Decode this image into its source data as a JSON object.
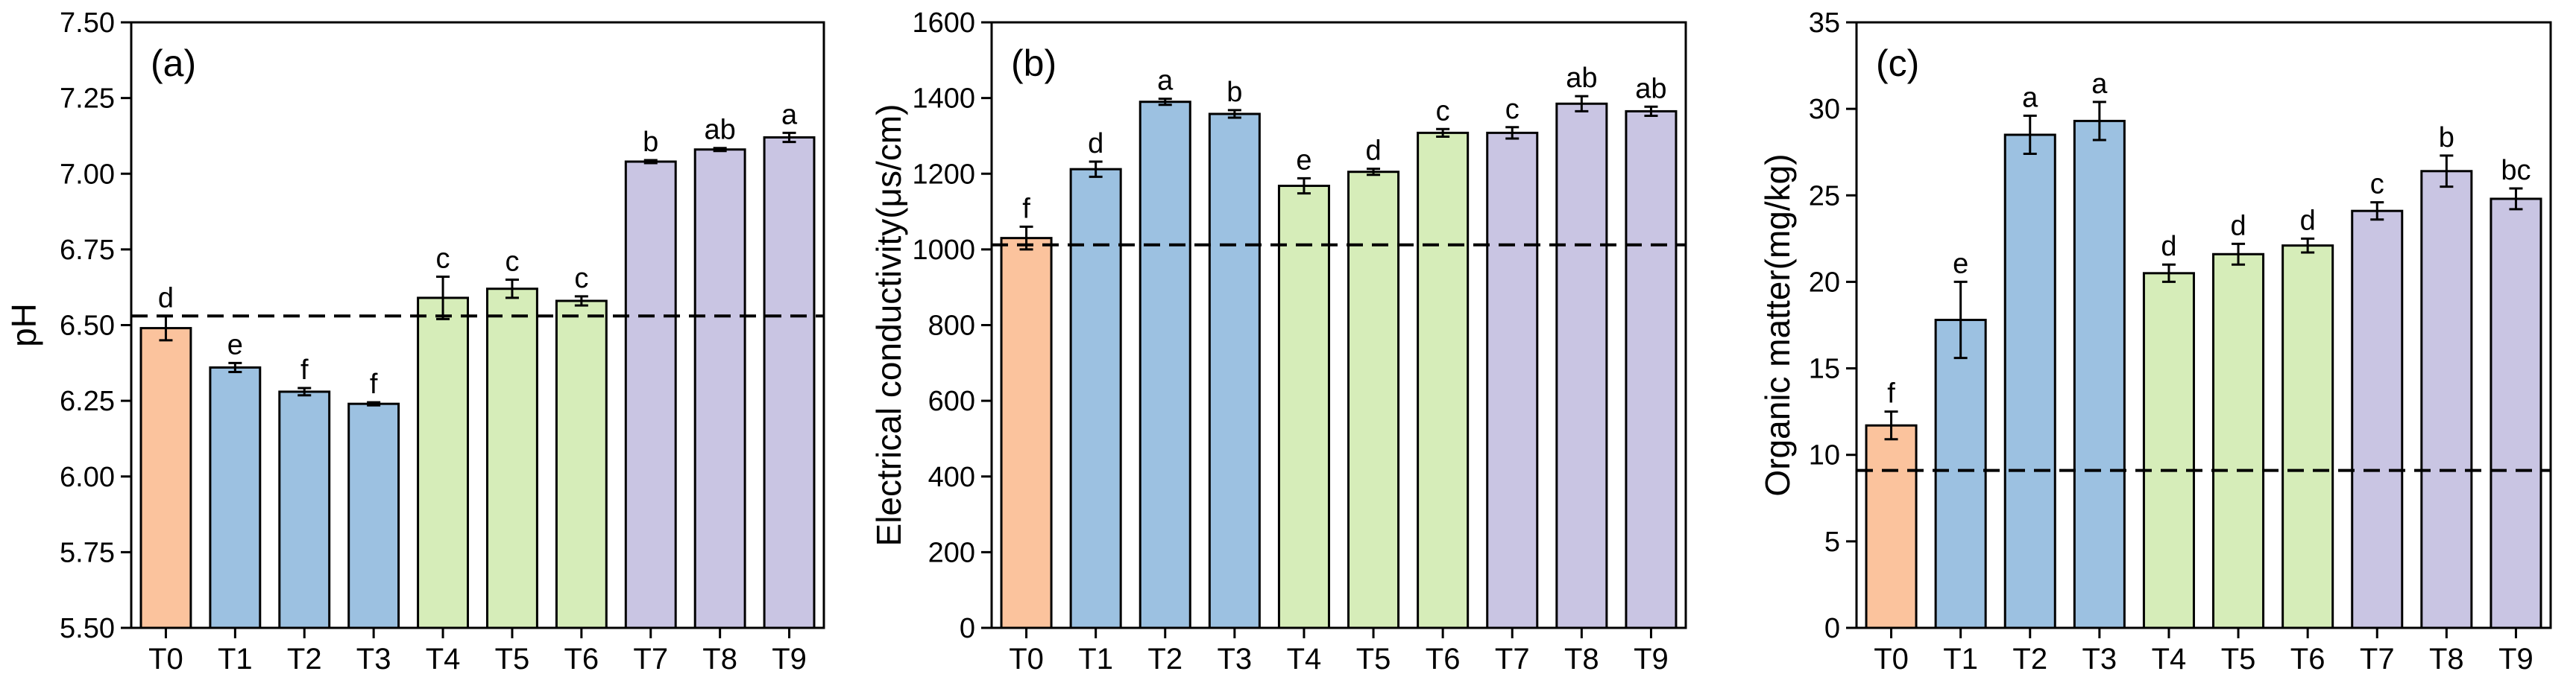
{
  "colors": {
    "T0": "#FBC39D",
    "T1-T3": "#9CC1E1",
    "T4-T6": "#D6EDB9",
    "T7-T9": "#C9C5E3",
    "axis": "#000000"
  },
  "chart_data": [
    {
      "type": "bar",
      "panel_label": "(a)",
      "ylabel": "pH",
      "xlabel": "",
      "ylim": [
        5.5,
        7.5
      ],
      "yticks": [
        "5.50",
        "5.75",
        "6.00",
        "6.25",
        "6.50",
        "6.75",
        "7.00",
        "7.25",
        "7.50"
      ],
      "categories": [
        "T0",
        "T1",
        "T2",
        "T3",
        "T4",
        "T5",
        "T6",
        "T7",
        "T8",
        "T9"
      ],
      "values": [
        6.49,
        6.36,
        6.28,
        6.24,
        6.59,
        6.62,
        6.58,
        7.04,
        7.08,
        7.12
      ],
      "errors": [
        0.04,
        0.015,
        0.012,
        0.005,
        0.07,
        0.03,
        0.015,
        0.005,
        0.005,
        0.015
      ],
      "letters": [
        "d",
        "e",
        "f",
        "f",
        "c",
        "c",
        "c",
        "b",
        "ab",
        "a"
      ],
      "reference_line": 6.53,
      "grid": false
    },
    {
      "type": "bar",
      "panel_label": "(b)",
      "ylabel": "Electrical conductivity(μs/cm)",
      "xlabel": "",
      "ylim": [
        0,
        1600
      ],
      "yticks": [
        "0",
        "200",
        "400",
        "600",
        "800",
        "1000",
        "1200",
        "1400",
        "1600"
      ],
      "categories": [
        "T0",
        "T1",
        "T2",
        "T3",
        "T4",
        "T5",
        "T6",
        "T7",
        "T8",
        "T9"
      ],
      "values": [
        1030,
        1212,
        1390,
        1358,
        1168,
        1205,
        1308,
        1308,
        1385,
        1365
      ],
      "errors": [
        30,
        20,
        8,
        10,
        20,
        8,
        10,
        15,
        20,
        12
      ],
      "letters": [
        "f",
        "d",
        "a",
        "b",
        "e",
        "d",
        "c",
        "c",
        "ab",
        "ab"
      ],
      "reference_line": 1012,
      "grid": false
    },
    {
      "type": "bar",
      "panel_label": "(c)",
      "ylabel": "Organic matter(mg/kg)",
      "xlabel": "",
      "ylim": [
        0,
        35
      ],
      "yticks": [
        "0",
        "5",
        "10",
        "15",
        "20",
        "25",
        "30",
        "35"
      ],
      "categories": [
        "T0",
        "T1",
        "T2",
        "T3",
        "T4",
        "T5",
        "T6",
        "T7",
        "T8",
        "T9"
      ],
      "values": [
        11.7,
        17.8,
        28.5,
        29.3,
        20.5,
        21.6,
        22.1,
        24.1,
        26.4,
        24.8
      ],
      "errors": [
        0.8,
        2.2,
        1.1,
        1.1,
        0.5,
        0.6,
        0.4,
        0.5,
        0.9,
        0.6
      ],
      "letters": [
        "f",
        "e",
        "a",
        "a",
        "d",
        "d",
        "d",
        "c",
        "b",
        "bc"
      ],
      "reference_line": 9.1,
      "grid": false
    }
  ]
}
